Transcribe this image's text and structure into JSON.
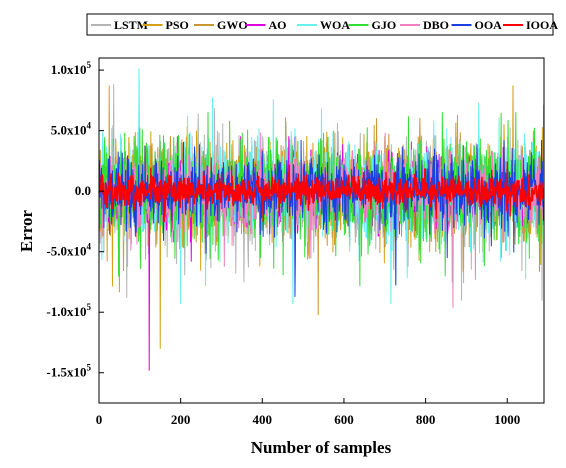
{
  "chart_data": {
    "type": "line",
    "xlabel": "Number of samples",
    "ylabel": "Error",
    "xlim": [
      0,
      1090
    ],
    "ylim": [
      -175000,
      110000
    ],
    "x_ticks": [
      {
        "value": 0,
        "label": "0"
      },
      {
        "value": 200,
        "label": "200"
      },
      {
        "value": 400,
        "label": "400"
      },
      {
        "value": 600,
        "label": "600"
      },
      {
        "value": 800,
        "label": "800"
      },
      {
        "value": 1000,
        "label": "1000"
      }
    ],
    "y_ticks": [
      {
        "value": 100000,
        "mantissa": "1.0x10",
        "exp": "5"
      },
      {
        "value": 50000,
        "mantissa": "5.0x10",
        "exp": "4"
      },
      {
        "value": 0,
        "mantissa": "0.0",
        "exp": ""
      },
      {
        "value": -50000,
        "mantissa": "-5.0x10",
        "exp": "4"
      },
      {
        "value": -100000,
        "mantissa": "-1.0x10",
        "exp": "5"
      },
      {
        "value": -150000,
        "mantissa": "-1.5x10",
        "exp": "5"
      }
    ],
    "n_samples": 1090,
    "legend_position": "top",
    "grid": false,
    "series": [
      {
        "name": "LSTM",
        "color": "#b4b4b4",
        "amplitude": 22000,
        "min": -90000,
        "max": 88000
      },
      {
        "name": "PSO",
        "color": "#d4a017",
        "amplitude": 20000,
        "min": -130000,
        "max": 87000
      },
      {
        "name": "GWO",
        "color": "#c89632",
        "amplitude": 17000,
        "min": -102000,
        "max": 60000
      },
      {
        "name": "AO",
        "color": "#e000e0",
        "amplitude": 14000,
        "min": -148000,
        "max": 45000
      },
      {
        "name": "WOA",
        "color": "#66f0f0",
        "amplitude": 21000,
        "min": -93000,
        "max": 101000
      },
      {
        "name": "GJO",
        "color": "#33dd33",
        "amplitude": 20000,
        "min": -78000,
        "max": 65000
      },
      {
        "name": "DBO",
        "color": "#f080c0",
        "amplitude": 13000,
        "min": -96000,
        "max": 48000
      },
      {
        "name": "OOA",
        "color": "#1a3fe0",
        "amplitude": 13000,
        "min": -87000,
        "max": 42000
      },
      {
        "name": "IOOA",
        "color": "#ff0000",
        "amplitude": 6000,
        "min": -25000,
        "max": 24000
      }
    ]
  }
}
